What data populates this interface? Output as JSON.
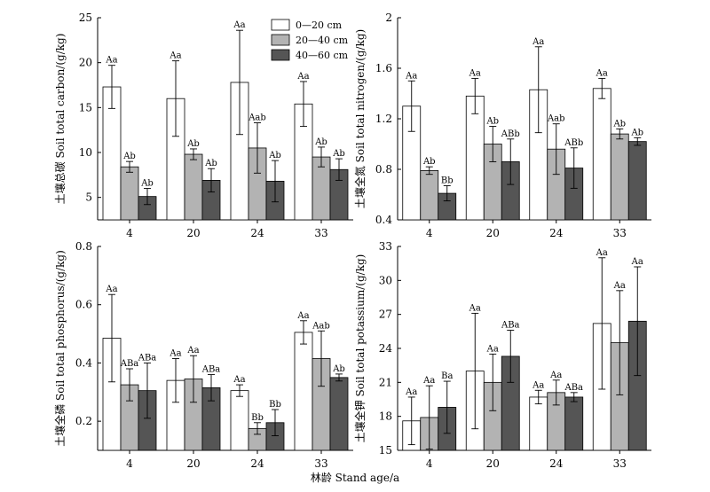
{
  "figure": {
    "xlabel": "林龄 Stand age/a",
    "legend": [
      "0—20 cm",
      "20—40 cm",
      "40—60 cm"
    ],
    "colors": {
      "series": [
        "#ffffff",
        "#b3b3b3",
        "#555555"
      ],
      "stroke": "#000000"
    },
    "legend_location": "top-left panel, upper right"
  },
  "chart_data": [
    {
      "type": "bar",
      "ylabel": "土壤总碳 Soil total carbon/(g/kg)",
      "categories": [
        "4",
        "20",
        "24",
        "33"
      ],
      "ylim": [
        2.5,
        25
      ],
      "yticks": [
        5,
        10,
        15,
        20,
        25
      ],
      "series": [
        {
          "name": "0—20 cm",
          "values": [
            17.3,
            16.0,
            17.8,
            15.4
          ],
          "errors": [
            2.4,
            4.2,
            5.8,
            2.5
          ],
          "labels": [
            "Aa",
            "Aa",
            "Aa",
            "Aa"
          ]
        },
        {
          "name": "20—40 cm",
          "values": [
            8.4,
            9.8,
            10.5,
            9.5
          ],
          "errors": [
            0.6,
            0.6,
            2.8,
            1.1
          ],
          "labels": [
            "Ab",
            "Ab",
            "Aab",
            "Ab"
          ]
        },
        {
          "name": "40—60 cm",
          "values": [
            5.1,
            6.9,
            6.8,
            8.1
          ],
          "errors": [
            0.9,
            1.3,
            2.3,
            1.2
          ],
          "labels": [
            "Ab",
            "Ab",
            "Ab",
            "Ab"
          ]
        }
      ]
    },
    {
      "type": "bar",
      "ylabel": "土壤全氮 Soil total nitrogen/(g/kg)",
      "categories": [
        "4",
        "20",
        "24",
        "33"
      ],
      "ylim": [
        0.4,
        2.0
      ],
      "yticks": [
        0.4,
        0.8,
        1.2,
        1.6,
        2.0
      ],
      "series": [
        {
          "name": "0—20 cm",
          "values": [
            1.3,
            1.38,
            1.43,
            1.44
          ],
          "errors": [
            0.2,
            0.14,
            0.34,
            0.08
          ],
          "labels": [
            "Aa",
            "Aa",
            "Aa",
            "Aa"
          ]
        },
        {
          "name": "20—40 cm",
          "values": [
            0.79,
            1.0,
            0.96,
            1.08
          ],
          "errors": [
            0.03,
            0.14,
            0.2,
            0.04
          ],
          "labels": [
            "Ab",
            "Ab",
            "Aab",
            "Ab"
          ]
        },
        {
          "name": "40—60 cm",
          "values": [
            0.61,
            0.86,
            0.81,
            1.02
          ],
          "errors": [
            0.06,
            0.18,
            0.16,
            0.03
          ],
          "labels": [
            "Bb",
            "ABb",
            "ABb",
            "Ab"
          ]
        }
      ]
    },
    {
      "type": "bar",
      "ylabel": "土壤全磷 Soil total phosphorus/(g/kg)",
      "categories": [
        "4",
        "20",
        "24",
        "33"
      ],
      "ylim": [
        0.1,
        0.8
      ],
      "yticks": [
        0.2,
        0.4,
        0.6,
        0.8
      ],
      "series": [
        {
          "name": "0—20 cm",
          "values": [
            0.485,
            0.34,
            0.305,
            0.505
          ],
          "errors": [
            0.15,
            0.075,
            0.02,
            0.04
          ],
          "labels": [
            "Aa",
            "Aa",
            "Aa",
            "Aa"
          ]
        },
        {
          "name": "20—40 cm",
          "values": [
            0.325,
            0.345,
            0.175,
            0.415
          ],
          "errors": [
            0.055,
            0.08,
            0.02,
            0.095
          ],
          "labels": [
            "ABa",
            "Aa",
            "Bb",
            "Aab"
          ]
        },
        {
          "name": "40—60 cm",
          "values": [
            0.305,
            0.315,
            0.195,
            0.35
          ],
          "errors": [
            0.095,
            0.045,
            0.045,
            0.012
          ],
          "labels": [
            "ABa",
            "ABa",
            "Bb",
            "Ab"
          ]
        }
      ]
    },
    {
      "type": "bar",
      "ylabel": "土壤全钾 Soil total potassium/(g/kg)",
      "categories": [
        "4",
        "20",
        "24",
        "33"
      ],
      "ylim": [
        15,
        33
      ],
      "yticks": [
        15,
        18,
        21,
        24,
        27,
        30,
        33
      ],
      "series": [
        {
          "name": "0—20 cm",
          "values": [
            17.6,
            22.0,
            19.7,
            26.2
          ],
          "errors": [
            2.1,
            5.1,
            0.6,
            5.8
          ],
          "labels": [
            "Aa",
            "Aa",
            "Aa",
            "Aa"
          ]
        },
        {
          "name": "20—40 cm",
          "values": [
            17.9,
            21.0,
            20.1,
            24.5
          ],
          "errors": [
            2.8,
            2.5,
            1.1,
            4.6
          ],
          "labels": [
            "Aa",
            "Aa",
            "Aa",
            "Aa"
          ]
        },
        {
          "name": "40—60 cm",
          "values": [
            18.8,
            23.3,
            19.7,
            26.4
          ],
          "errors": [
            2.3,
            2.3,
            0.4,
            4.8
          ],
          "labels": [
            "Ba",
            "ABa",
            "ABa",
            "Aa"
          ]
        }
      ]
    }
  ]
}
